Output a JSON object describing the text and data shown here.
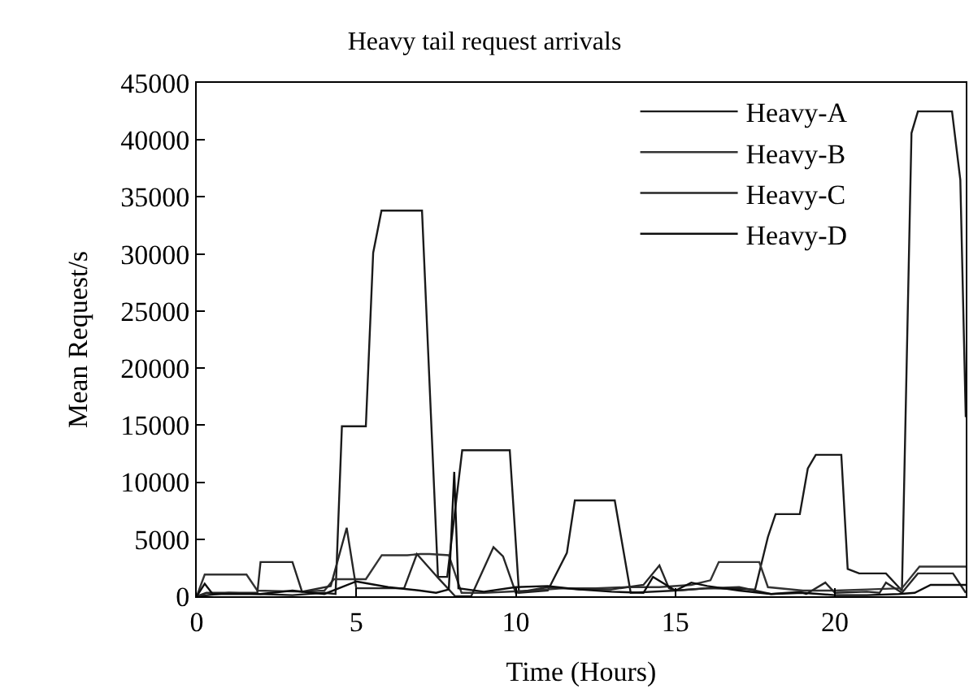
{
  "chart_data": {
    "type": "line",
    "title": "Heavy tail request arrivals",
    "xlabel": "Time (Hours)",
    "ylabel": "Mean Request/s",
    "xlim": [
      0,
      24.1
    ],
    "xticks": [
      0,
      5,
      10,
      15,
      20
    ],
    "ylim": [
      0,
      45000
    ],
    "yticks": [
      0,
      5000,
      10000,
      15000,
      20000,
      25000,
      30000,
      35000,
      40000,
      45000
    ],
    "legend": "top right",
    "marker": "none",
    "line_style": "solid",
    "series": [
      {
        "name": "Heavy-A",
        "color": "#1a1a1a",
        "x": [
          0,
          1,
          2,
          3,
          4,
          4.35,
          4.55,
          5.3,
          5.53,
          5.79,
          7.06,
          7.56,
          7.85,
          8.32,
          9.81,
          10.1,
          11,
          11.6,
          11.85,
          13.1,
          13.6,
          15,
          16,
          17.5,
          17.9,
          18.14,
          18.9,
          19.15,
          19.4,
          20.2,
          20.4,
          20.76,
          21.6,
          22.1,
          22.4,
          22.6,
          23.67,
          23.93,
          24.1
        ],
        "values": [
          0,
          300,
          200,
          100,
          300,
          200,
          14900,
          14900,
          30100,
          33800,
          33800,
          1700,
          1700,
          12800,
          12800,
          300,
          500,
          3800,
          8400,
          8400,
          300,
          500,
          700,
          600,
          5200,
          7200,
          7200,
          11200,
          12400,
          12400,
          2400,
          2000,
          2000,
          500,
          40600,
          42500,
          42500,
          36500,
          15700
        ]
      },
      {
        "name": "Heavy-B",
        "color": "#333333",
        "x": [
          0,
          0.25,
          1.56,
          1.9,
          3.3,
          4.0,
          4.3,
          5.3,
          5.8,
          6.6,
          7.0,
          7.3,
          7.9,
          8.3,
          9,
          10.5,
          11.5,
          12.5,
          13.5,
          14.5,
          15.5,
          16.1,
          16.36,
          17.63,
          17.9,
          19,
          20,
          21,
          22.1,
          22.65,
          23.93,
          24.1
        ],
        "values": [
          0,
          1900,
          1900,
          500,
          400,
          500,
          1500,
          1500,
          3600,
          3600,
          3700,
          3700,
          3600,
          300,
          300,
          500,
          700,
          700,
          800,
          800,
          1000,
          1400,
          3000,
          3000,
          800,
          500,
          500,
          600,
          700,
          2600,
          2600,
          2600
        ]
      },
      {
        "name": "Heavy-C",
        "color": "#262626",
        "x": [
          0,
          0.3,
          1.9,
          2.0,
          3.0,
          3.3,
          4.2,
          4.7,
          5.0,
          6,
          6.5,
          6.9,
          7.6,
          8.1,
          8.6,
          9.3,
          9.6,
          10,
          11,
          12,
          13,
          14,
          14.5,
          14.8,
          15,
          16,
          17,
          18,
          18.9,
          19.1,
          19.7,
          20,
          21,
          21.4,
          21.6,
          22.1,
          22.6,
          23.7,
          24.1
        ],
        "values": [
          0,
          300,
          300,
          3000,
          3000,
          400,
          900,
          6000,
          700,
          700,
          700,
          3700,
          1500,
          0,
          0,
          4300,
          3500,
          300,
          800,
          600,
          600,
          1000,
          2700,
          700,
          500,
          700,
          800,
          200,
          400,
          200,
          1200,
          300,
          400,
          300,
          1200,
          300,
          2000,
          2000,
          300
        ]
      },
      {
        "name": "Heavy-D",
        "color": "#0d0d0d",
        "x": [
          0,
          0.25,
          0.5,
          2,
          3,
          4,
          5,
          6,
          7,
          7.5,
          7.9,
          8.07,
          8.2,
          9,
          10,
          11,
          12,
          13,
          14,
          14.3,
          15,
          15.5,
          16,
          17,
          18,
          19,
          20,
          21,
          22,
          22.5,
          23,
          24.1
        ],
        "values": [
          0,
          1100,
          200,
          200,
          500,
          200,
          1300,
          800,
          500,
          300,
          600,
          10900,
          700,
          400,
          800,
          900,
          600,
          400,
          300,
          1700,
          500,
          1200,
          900,
          500,
          200,
          300,
          100,
          100,
          200,
          300,
          1000,
          1000
        ]
      }
    ]
  }
}
